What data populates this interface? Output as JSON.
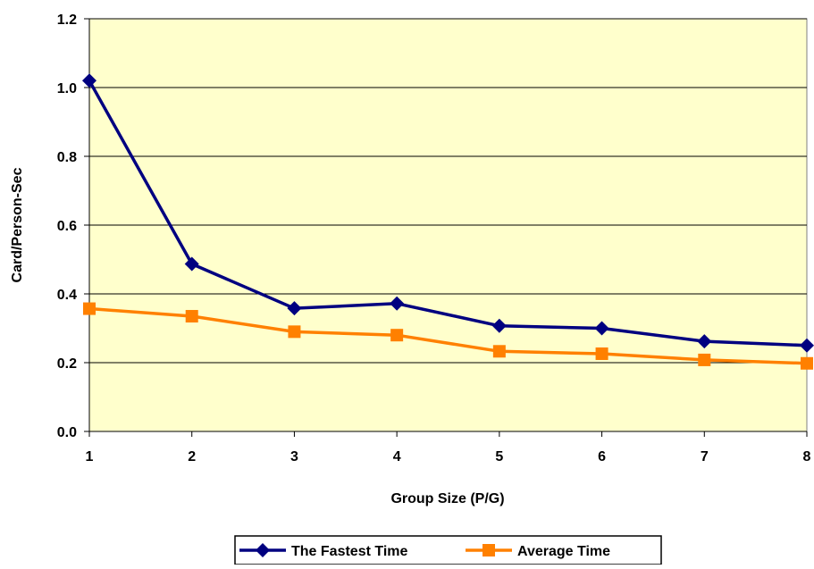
{
  "chart_data": {
    "type": "line",
    "title": "",
    "xlabel": "Group Size (P/G)",
    "ylabel": "Card/Person-Sec",
    "x": [
      1,
      2,
      3,
      4,
      5,
      6,
      7,
      8
    ],
    "x_tick_labels": [
      "1",
      "2",
      "3",
      "4",
      "5",
      "6",
      "7",
      "8"
    ],
    "ylim": [
      0,
      1.2
    ],
    "y_ticks": [
      0,
      0.2,
      0.4,
      0.6,
      0.8,
      1.0,
      1.2
    ],
    "y_tick_labels": [
      "0.0",
      "0.2",
      "0.4",
      "0.6",
      "0.8",
      "1.0",
      "1.2"
    ],
    "grid": "horizontal",
    "plot_background": "#FFFFCC",
    "legend_position": "bottom",
    "series": [
      {
        "name": "The Fastest Time",
        "color": "#000080",
        "marker": "diamond",
        "values": [
          1.02,
          0.487,
          0.358,
          0.372,
          0.307,
          0.3,
          0.262,
          0.25
        ]
      },
      {
        "name": "Average Time",
        "color": "#FF8000",
        "marker": "square",
        "values": [
          0.357,
          0.335,
          0.29,
          0.28,
          0.233,
          0.226,
          0.208,
          0.198
        ]
      }
    ]
  }
}
